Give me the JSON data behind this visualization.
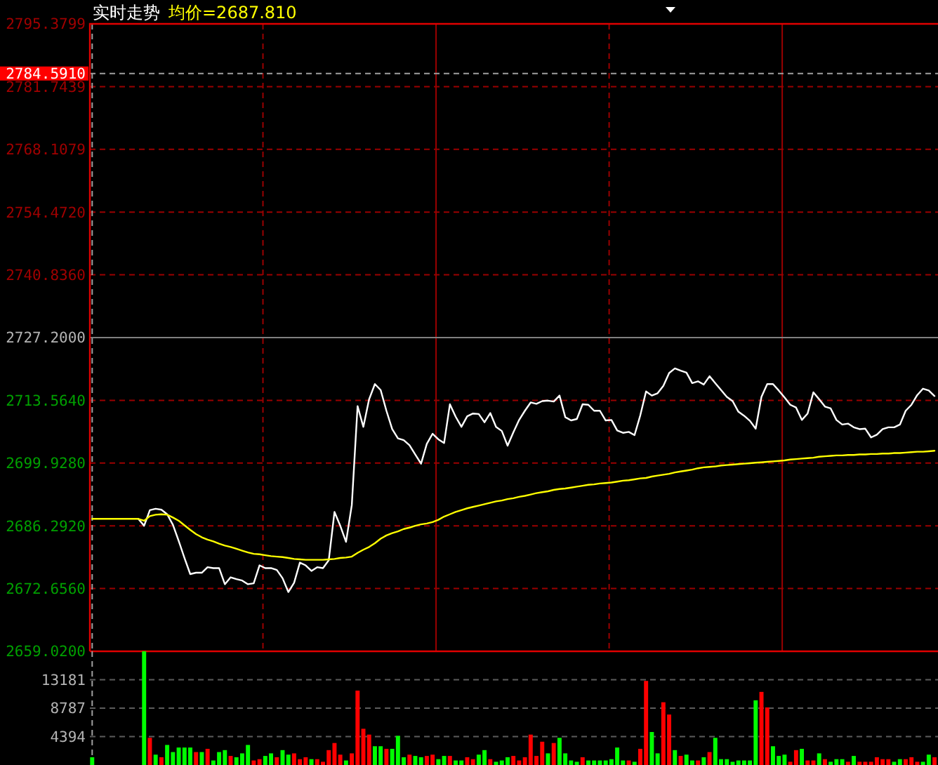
{
  "chart_data": [
    {
      "type": "line",
      "title": "实时走势",
      "legend": "top left",
      "grid": true,
      "tick_labels": "y",
      "categories": [
        null,
        null,
        null,
        null,
        null,
        null,
        null,
        null,
        null,
        null,
        null,
        null,
        null,
        null,
        null,
        null,
        null,
        null,
        null,
        null,
        null,
        null,
        null,
        null,
        null,
        null,
        null,
        null,
        null,
        null,
        null,
        null,
        null,
        null,
        null,
        null,
        null,
        null,
        null,
        null,
        null,
        null,
        null,
        null,
        null,
        null,
        null,
        null,
        null,
        null,
        null,
        null,
        null,
        null,
        null,
        null,
        null,
        null,
        null,
        null,
        null,
        null,
        null,
        null,
        null,
        null,
        null,
        null,
        null,
        null,
        null,
        null,
        null,
        null,
        null,
        null,
        null,
        null,
        null,
        null,
        null,
        null,
        null,
        null,
        null,
        null,
        null,
        null,
        null,
        null,
        null,
        null,
        null,
        null,
        null,
        null,
        null,
        null,
        null,
        null,
        null,
        null,
        null,
        null,
        null,
        null,
        null,
        null,
        null,
        null,
        null,
        null,
        null,
        null,
        null,
        null,
        null,
        null,
        null,
        null,
        null,
        null,
        null,
        null,
        null,
        null,
        null,
        null,
        null,
        null,
        null,
        null,
        null,
        null,
        null,
        null,
        null,
        null,
        null,
        null,
        null,
        null,
        null,
        null,
        null,
        null,
        null
      ],
      "series": [
        {
          "color": "#ffffff",
          "values": [
            null,
            null,
            null,
            null,
            null,
            null,
            null,
            null,
            2687.8,
            2686.3,
            2689.7,
            2690.0,
            2689.8,
            2688.8,
            2686.5,
            2683.0,
            2679.3,
            2675.8,
            2676.1,
            2676.1,
            2677.3,
            2677.1,
            2677.1,
            2673.6,
            2675.1,
            2674.7,
            2674.4,
            2673.6,
            2673.8,
            2677.7,
            2677.1,
            2677.1,
            2676.7,
            2674.9,
            2671.9,
            2673.9,
            2678.3,
            2677.7,
            2676.5,
            2677.3,
            2677.1,
            2678.8,
            2689.3,
            2686.3,
            2682.8,
            2690.8,
            2712.3,
            2707.8,
            2713.8,
            2717.1,
            2715.8,
            2711.3,
            2707.3,
            2705.3,
            2704.9,
            2703.8,
            2701.8,
            2699.8,
            2704.1,
            2706.3,
            2705.1,
            2704.3,
            2712.7,
            2710.0,
            2707.8,
            2710.1,
            2710.7,
            2710.6,
            2708.8,
            2710.8,
            2707.8,
            2706.9,
            2703.7,
            2706.6,
            2709.3,
            2711.3,
            2713.1,
            2712.8,
            2713.4,
            2713.5,
            2713.3,
            2714.6,
            2709.9,
            2709.2,
            2709.5,
            2712.7,
            2712.6,
            2711.3,
            2711.3,
            2709.2,
            2709.3,
            2707.0,
            2706.5,
            2706.7,
            2706.0,
            2710.3,
            2715.5,
            2714.6,
            2715.1,
            2716.7,
            2719.5,
            2720.5,
            2720.0,
            2719.6,
            2717.3,
            2717.7,
            2717.0,
            2718.8,
            2717.3,
            2715.8,
            2714.3,
            2713.4,
            2711.1,
            2710.2,
            2709.1,
            2707.4,
            2714.3,
            2717.1,
            2717.1,
            2715.7,
            2714.2,
            2712.6,
            2712.0,
            2709.3,
            2710.7,
            2715.3,
            2713.8,
            2712.2,
            2711.8,
            2709.3,
            2708.3,
            2708.5,
            2707.7,
            2707.3,
            2707.4,
            2705.5,
            2706.1,
            2707.3,
            2707.7,
            2707.7,
            2708.3,
            2711.3,
            2712.6,
            2714.7,
            2716.1,
            2715.7,
            2714.5
          ]
        },
        {
          "name": "均价=2687.810",
          "color": "#ffff00",
          "values": [
            2687.8,
            2687.8,
            2687.8,
            2687.8,
            2687.8,
            2687.8,
            2687.8,
            2687.8,
            2687.8,
            2687.4,
            2688.4,
            2688.7,
            2688.8,
            2688.7,
            2688.1,
            2687.4,
            2686.4,
            2685.4,
            2684.5,
            2683.8,
            2683.3,
            2682.9,
            2682.4,
            2682.0,
            2681.7,
            2681.3,
            2680.9,
            2680.5,
            2680.2,
            2680.1,
            2679.9,
            2679.7,
            2679.6,
            2679.5,
            2679.3,
            2679.1,
            2679.0,
            2678.9,
            2678.9,
            2678.9,
            2678.9,
            2679.0,
            2679.1,
            2679.3,
            2679.4,
            2679.6,
            2680.4,
            2681.1,
            2681.7,
            2682.5,
            2683.5,
            2684.2,
            2684.7,
            2685.1,
            2685.6,
            2685.9,
            2686.3,
            2686.6,
            2686.8,
            2687.1,
            2687.6,
            2688.3,
            2688.8,
            2689.3,
            2689.7,
            2690.1,
            2690.4,
            2690.7,
            2691.0,
            2691.3,
            2691.6,
            2691.8,
            2692.1,
            2692.3,
            2692.6,
            2692.8,
            2693.1,
            2693.4,
            2693.6,
            2693.8,
            2694.1,
            2694.3,
            2694.4,
            2694.6,
            2694.8,
            2695.0,
            2695.2,
            2695.3,
            2695.5,
            2695.6,
            2695.7,
            2695.9,
            2696.1,
            2696.2,
            2696.4,
            2696.6,
            2696.7,
            2697.0,
            2697.2,
            2697.4,
            2697.6,
            2697.9,
            2698.1,
            2698.3,
            2698.5,
            2698.8,
            2699.0,
            2699.1,
            2699.2,
            2699.4,
            2699.5,
            2699.6,
            2699.7,
            2699.8,
            2699.9,
            2700.0,
            2700.1,
            2700.2,
            2700.3,
            2700.4,
            2700.5,
            2700.7,
            2700.8,
            2700.9,
            2701.0,
            2701.1,
            2701.3,
            2701.4,
            2701.5,
            2701.6,
            2701.6,
            2701.7,
            2701.7,
            2701.8,
            2701.8,
            2701.9,
            2701.9,
            2702.0,
            2702.0,
            2702.1,
            2702.1,
            2702.2,
            2702.3,
            2702.4,
            2702.4,
            2702.5,
            2702.6
          ]
        }
      ],
      "ylim": [
        2659.02,
        2795.3799
      ],
      "yticks": [
        {
          "value": 2659.02,
          "label": "2659.0200"
        },
        {
          "value": 2672.656,
          "label": "2672.6560"
        },
        {
          "value": 2686.292,
          "label": "2686.2920"
        },
        {
          "value": 2699.928,
          "label": "2699.9280"
        },
        {
          "value": 2713.564,
          "label": "2713.5640"
        },
        {
          "value": 2727.2,
          "label": "2727.2000"
        },
        {
          "value": 2740.836,
          "label": "2740.8360"
        },
        {
          "value": 2754.472,
          "label": "2754.4720"
        },
        {
          "value": 2768.1079,
          "label": "2768.1079"
        },
        {
          "value": 2781.7439,
          "label": "2781.7439"
        },
        {
          "value": 2795.3799,
          "label": "2795.3799"
        }
      ],
      "ref_lines": [
        {
          "axis": "y",
          "value": 2727.2,
          "color": "#808080",
          "line_style": "solid"
        },
        {
          "axis": "y",
          "value": 2784.591,
          "label": "2784.5910",
          "color": "#a0a0a0",
          "line_style": "dashed"
        }
      ]
    },
    {
      "type": "bar",
      "grid": "y",
      "tick_labels": "y",
      "categories": [
        null,
        null,
        null,
        null,
        null,
        null,
        null,
        null,
        null,
        null,
        null,
        null,
        null,
        null,
        null,
        null,
        null,
        null,
        null,
        null,
        null,
        null,
        null,
        null,
        null,
        null,
        null,
        null,
        null,
        null,
        null,
        null,
        null,
        null,
        null,
        null,
        null,
        null,
        null,
        null,
        null,
        null,
        null,
        null,
        null,
        null,
        null,
        null,
        null,
        null,
        null,
        null,
        null,
        null,
        null,
        null,
        null,
        null,
        null,
        null,
        null,
        null,
        null,
        null,
        null,
        null,
        null,
        null,
        null,
        null,
        null,
        null,
        null,
        null,
        null,
        null,
        null,
        null,
        null,
        null,
        null,
        null,
        null,
        null,
        null,
        null,
        null,
        null,
        null,
        null,
        null,
        null,
        null,
        null,
        null,
        null,
        null,
        null,
        null,
        null,
        null,
        null,
        null,
        null,
        null,
        null,
        null,
        null,
        null,
        null,
        null,
        null,
        null,
        null,
        null,
        null,
        null,
        null,
        null,
        null,
        null,
        null,
        null,
        null,
        null,
        null,
        null,
        null,
        null,
        null,
        null,
        null,
        null,
        null,
        null,
        null,
        null,
        null,
        null,
        null,
        null,
        null,
        null,
        null,
        null,
        null,
        null
      ],
      "values": [
        1200,
        null,
        null,
        null,
        null,
        null,
        null,
        null,
        null,
        17575,
        4200,
        1600,
        1200,
        3100,
        2000,
        2700,
        2700,
        2700,
        2000,
        2000,
        2500,
        700,
        2000,
        2300,
        1400,
        1200,
        1800,
        3100,
        700,
        900,
        1400,
        1800,
        1200,
        2300,
        1600,
        1800,
        900,
        1200,
        900,
        900,
        500,
        2300,
        3400,
        1600,
        700,
        1800,
        11500,
        5600,
        4700,
        2900,
        2900,
        2500,
        2500,
        4500,
        1200,
        1600,
        1400,
        1200,
        1400,
        1600,
        900,
        1400,
        1400,
        700,
        700,
        1200,
        900,
        1600,
        2300,
        900,
        500,
        700,
        1200,
        1400,
        700,
        1200,
        4700,
        1400,
        3600,
        1800,
        3400,
        4200,
        1800,
        700,
        500,
        1200,
        700,
        700,
        700,
        700,
        900,
        2700,
        700,
        700,
        500,
        2500,
        13000,
        5100,
        1800,
        9700,
        7800,
        2300,
        1400,
        1600,
        700,
        700,
        1200,
        2000,
        4200,
        900,
        900,
        500,
        700,
        700,
        700,
        10000,
        11300,
        8900,
        2900,
        1400,
        1600,
        500,
        2300,
        2500,
        700,
        700,
        1800,
        900,
        500,
        900,
        900,
        500,
        1400,
        500,
        500,
        500,
        1200,
        900,
        900,
        500,
        900,
        900,
        1200,
        500,
        500,
        1600,
        1200
      ],
      "colors": [
        "#00ff00",
        null,
        null,
        null,
        null,
        null,
        null,
        null,
        null,
        "#00ff00",
        "#ff0000",
        "#00ff00",
        "#ff0000",
        "#00ff00",
        "#00ff00",
        "#00ff00",
        "#00ff00",
        "#00ff00",
        "#ff0000",
        "#00ff00",
        "#ff0000",
        "#00ff00",
        "#00ff00",
        "#00ff00",
        "#ff0000",
        "#00ff00",
        "#00ff00",
        "#00ff00",
        "#ff0000",
        "#ff0000",
        "#00ff00",
        "#00ff00",
        "#ff0000",
        "#00ff00",
        "#00ff00",
        "#ff0000",
        "#ff0000",
        "#ff0000",
        "#00ff00",
        "#ff0000",
        "#ff0000",
        "#ff0000",
        "#ff0000",
        "#ff0000",
        "#00ff00",
        "#ff0000",
        "#ff0000",
        "#ff0000",
        "#ff0000",
        "#00ff00",
        "#00ff00",
        "#ff0000",
        "#00ff00",
        "#00ff00",
        "#00ff00",
        "#ff0000",
        "#00ff00",
        "#00ff00",
        "#ff0000",
        "#ff0000",
        "#00ff00",
        "#00ff00",
        "#ff0000",
        "#00ff00",
        "#00ff00",
        "#ff0000",
        "#ff0000",
        "#00ff00",
        "#00ff00",
        "#ff0000",
        "#00ff00",
        "#00ff00",
        "#00ff00",
        "#ff0000",
        "#ff0000",
        "#ff0000",
        "#ff0000",
        "#ff0000",
        "#ff0000",
        "#00ff00",
        "#ff0000",
        "#00ff00",
        "#00ff00",
        "#00ff00",
        "#00ff00",
        "#ff0000",
        "#00ff00",
        "#00ff00",
        "#00ff00",
        "#00ff00",
        "#00ff00",
        "#00ff00",
        "#00ff00",
        "#ff0000",
        "#00ff00",
        "#ff0000",
        "#ff0000",
        "#00ff00",
        "#00ff00",
        "#ff0000",
        "#ff0000",
        "#00ff00",
        "#ff0000",
        "#00ff00",
        "#00ff00",
        "#ff0000",
        "#00ff00",
        "#ff0000",
        "#00ff00",
        "#00ff00",
        "#00ff00",
        "#00ff00",
        "#00ff00",
        "#00ff00",
        "#00ff00",
        "#00ff00",
        "#ff0000",
        "#ff0000",
        "#00ff00",
        "#00ff00",
        "#00ff00",
        "#ff0000",
        "#ff0000",
        "#00ff00",
        "#ff0000",
        "#ff0000",
        "#00ff00",
        "#ff0000",
        "#00ff00",
        "#00ff00",
        "#00ff00",
        "#ff0000",
        "#00ff00",
        "#ff0000",
        "#ff0000",
        "#ff0000",
        "#ff0000",
        "#ff0000",
        "#ff0000",
        "#00ff00",
        "#00ff00",
        "#ff0000",
        "#ff0000",
        "#ff0000",
        "#00ff00",
        "#00ff00",
        "#ff0000"
      ],
      "ylim": [
        0,
        17575
      ],
      "yticks": [
        4394,
        8787,
        13181
      ]
    }
  ]
}
